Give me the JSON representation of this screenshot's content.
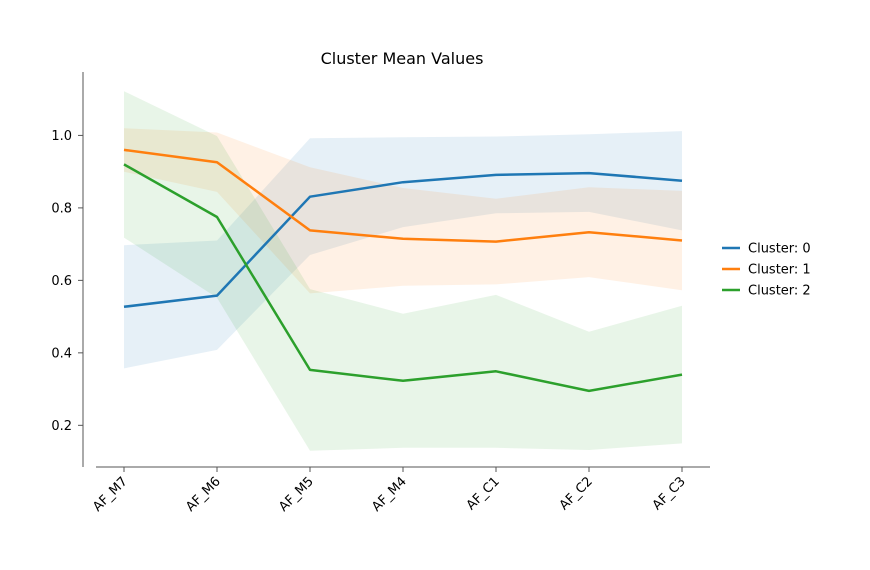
{
  "chart_data": {
    "type": "line",
    "title": "Cluster Mean Values",
    "xlabel": "",
    "ylabel": "",
    "categories": [
      "AF_M7",
      "AF_M6",
      "AF_M5",
      "AF_M4",
      "AF_C1",
      "AF_C2",
      "AF_C3"
    ],
    "yticks": [
      "0.2",
      "0.4",
      "0.6",
      "0.8",
      "1.0"
    ],
    "ylim": [
      0.085,
      1.175
    ],
    "grid": false,
    "legend_position": "right",
    "series": [
      {
        "name": "Cluster: 0",
        "color": "#1f77b4",
        "values": [
          0.527,
          0.558,
          0.831,
          0.871,
          0.891,
          0.896,
          0.875
        ],
        "upper": [
          0.697,
          0.71,
          0.992,
          0.995,
          0.997,
          1.003,
          1.012
        ],
        "lower": [
          0.357,
          0.408,
          0.67,
          0.747,
          0.785,
          0.789,
          0.738
        ]
      },
      {
        "name": "Cluster: 1",
        "color": "#ff7f0e",
        "values": [
          0.96,
          0.926,
          0.738,
          0.715,
          0.707,
          0.733,
          0.71
        ],
        "upper": [
          1.02,
          1.008,
          0.912,
          0.855,
          0.825,
          0.857,
          0.847
        ],
        "lower": [
          0.9,
          0.844,
          0.564,
          0.585,
          0.589,
          0.609,
          0.573
        ]
      },
      {
        "name": "Cluster: 2",
        "color": "#2ca02c",
        "values": [
          0.92,
          0.775,
          0.353,
          0.323,
          0.349,
          0.295,
          0.34
        ],
        "upper": [
          1.122,
          0.998,
          0.576,
          0.508,
          0.56,
          0.458,
          0.53
        ],
        "lower": [
          0.718,
          0.552,
          0.13,
          0.138,
          0.138,
          0.132,
          0.15
        ]
      }
    ]
  }
}
